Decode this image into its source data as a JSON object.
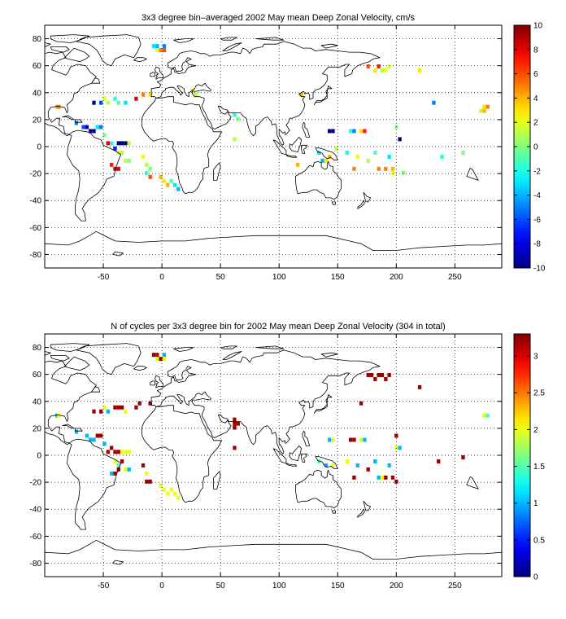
{
  "chart_data": [
    {
      "type": "heatmap",
      "title": "3x3 degree bin–averaged 2002 May mean Deep Zonal Velocity, cm/s",
      "xlabel": "",
      "ylabel": "",
      "xlim": [
        -100,
        290
      ],
      "ylim": [
        -90,
        90
      ],
      "x_ticks": [
        "-50",
        "0",
        "50",
        "100",
        "150",
        "200",
        "250"
      ],
      "y_ticks": [
        "80",
        "60",
        "40",
        "20",
        "0",
        "-20",
        "-40",
        "-60",
        "-80"
      ],
      "grid": true,
      "colorbar": {
        "range": [
          -10,
          10
        ],
        "ticks": [
          "10",
          "8",
          "6",
          "4",
          "2",
          "0",
          "-2",
          "-4",
          "-6",
          "-8",
          "-10"
        ],
        "colormap": "jet"
      },
      "bin_size_deg": 3,
      "cells": [
        [
          -89.5,
          29.5,
          4
        ],
        [
          -88,
          29.5,
          5
        ],
        [
          -58,
          32.5,
          -10
        ],
        [
          -52,
          32.5,
          -6
        ],
        [
          -49,
          35.5,
          2
        ],
        [
          -46,
          32.5,
          1
        ],
        [
          -40,
          35.5,
          -2
        ],
        [
          -37,
          32.5,
          -1
        ],
        [
          -31,
          32.5,
          -3
        ],
        [
          -22,
          35.5,
          8
        ],
        [
          -16,
          38.5,
          5
        ],
        [
          -10,
          38.5,
          3
        ],
        [
          -7,
          74.5,
          -3
        ],
        [
          -4,
          74.5,
          -4
        ],
        [
          -4,
          71.5,
          2
        ],
        [
          -1,
          71.5,
          5
        ],
        [
          2,
          74.5,
          -5
        ],
        [
          2,
          71.5,
          6
        ],
        [
          26,
          41.5,
          3
        ],
        [
          29,
          38.5,
          1
        ],
        [
          62,
          23.5,
          -2
        ],
        [
          65,
          20.5,
          0
        ],
        [
          62,
          5.5,
          1
        ],
        [
          119,
          38.5,
          4
        ],
        [
          143,
          11.5,
          -10
        ],
        [
          146,
          11.5,
          -10
        ],
        [
          161,
          11.5,
          -2
        ],
        [
          164,
          11.5,
          -5
        ],
        [
          170,
          11.5,
          3
        ],
        [
          173,
          11.5,
          7
        ],
        [
          164,
          -16.5,
          5
        ],
        [
          185,
          -16.5,
          5
        ],
        [
          191,
          -16.5,
          5
        ],
        [
          197,
          -16.5,
          4
        ],
        [
          182,
          56.5,
          3
        ],
        [
          185,
          59.5,
          7
        ],
        [
          188,
          56.5,
          1
        ],
        [
          191,
          56.5,
          2
        ],
        [
          194,
          59.5,
          2
        ],
        [
          176,
          59.5,
          6
        ],
        [
          220,
          56.5,
          3
        ],
        [
          232,
          32.5,
          -5
        ],
        [
          239,
          -7.5,
          -2
        ],
        [
          257,
          -4.5,
          0
        ],
        [
          -73,
          17.5,
          -5
        ],
        [
          -67,
          14.5,
          -6
        ],
        [
          -64,
          14.5,
          -9
        ],
        [
          -61,
          11.5,
          -10
        ],
        [
          -58,
          11.5,
          -10
        ],
        [
          -55,
          14.5,
          -3
        ],
        [
          -52,
          14.5,
          -5
        ],
        [
          -49,
          8.5,
          0
        ],
        [
          -46,
          2.5,
          8
        ],
        [
          -43,
          2.5,
          -2
        ],
        [
          -40,
          -1.5,
          -7
        ],
        [
          -37,
          2.5,
          -10
        ],
        [
          -34,
          2.5,
          -10
        ],
        [
          -31,
          2.5,
          -10
        ],
        [
          -28,
          2.5,
          1
        ],
        [
          -37,
          -4.5,
          2
        ],
        [
          -34,
          -4.5,
          1
        ],
        [
          -43,
          -13.5,
          7
        ],
        [
          -40,
          -16.5,
          8
        ],
        [
          -37,
          -16.5,
          8
        ],
        [
          -31,
          -10.5,
          1
        ],
        [
          -28,
          -10.5,
          0
        ],
        [
          -16,
          -7.5,
          2
        ],
        [
          -13,
          -13.5,
          1
        ],
        [
          -10,
          -16.5,
          0
        ],
        [
          -13,
          -19.5,
          -1
        ],
        [
          -10,
          -22.5,
          6
        ],
        [
          -1,
          -22.5,
          4
        ],
        [
          2,
          -25.5,
          3
        ],
        [
          5,
          -28.5,
          4
        ],
        [
          8,
          -25.5,
          -1
        ],
        [
          11,
          -28.5,
          -3
        ],
        [
          14,
          -31.5,
          -4
        ],
        [
          116,
          -13.5,
          4
        ],
        [
          134,
          -4.5,
          -3
        ],
        [
          137,
          -10.5,
          -4
        ],
        [
          140,
          -10.5,
          3
        ],
        [
          143,
          -7.5,
          4
        ],
        [
          149,
          -1.5,
          1
        ],
        [
          158,
          -4.5,
          -2
        ],
        [
          167,
          -7.5,
          2
        ],
        [
          176,
          -10.5,
          1
        ],
        [
          182,
          -4.5,
          -1
        ],
        [
          194,
          -7.5,
          -3
        ],
        [
          203,
          5.5,
          -10
        ],
        [
          200,
          14.5,
          0
        ],
        [
          197,
          -19.5,
          2
        ],
        [
          206,
          -19.5,
          0
        ],
        [
          275,
          29.5,
          3
        ],
        [
          278,
          29.5,
          5
        ],
        [
          272,
          26.5,
          1
        ],
        [
          275,
          26.5,
          4
        ]
      ]
    },
    {
      "type": "heatmap",
      "title": "N of cycles per 3x3 degree bin for 2002 May mean Deep Zonal Velocity (304 in total)",
      "xlabel": "",
      "ylabel": "",
      "xlim": [
        -100,
        290
      ],
      "ylim": [
        -90,
        90
      ],
      "x_ticks": [
        "-50",
        "0",
        "50",
        "100",
        "150",
        "200",
        "250"
      ],
      "y_ticks": [
        "80",
        "60",
        "40",
        "20",
        "0",
        "-20",
        "-40",
        "-60",
        "-80"
      ],
      "grid": true,
      "colorbar": {
        "range": [
          0,
          3.3
        ],
        "ticks": [
          "3",
          "2.5",
          "2",
          "1.5",
          "1",
          "0.5",
          "0"
        ],
        "colormap": "jet"
      },
      "bin_size_deg": 3,
      "cells": [
        [
          -89.5,
          29.5,
          1
        ],
        [
          -88,
          29.5,
          2
        ],
        [
          -58,
          32.5,
          3.2
        ],
        [
          -52,
          32.5,
          3.2
        ],
        [
          -49,
          35.5,
          2
        ],
        [
          -46,
          32.5,
          1
        ],
        [
          -40,
          35.5,
          3.2
        ],
        [
          -37,
          35.5,
          3.2
        ],
        [
          -34,
          35.5,
          3.2
        ],
        [
          -31,
          32.5,
          2
        ],
        [
          -22,
          35.5,
          3.2
        ],
        [
          -19,
          38.5,
          3.2
        ],
        [
          -10,
          38.5,
          3.2
        ],
        [
          -7,
          74.5,
          3.2
        ],
        [
          -4,
          74.5,
          3.2
        ],
        [
          -1,
          71.5,
          3.2
        ],
        [
          2,
          74.5,
          1
        ],
        [
          2,
          71.5,
          2
        ],
        [
          -4,
          71.5,
          2
        ],
        [
          62,
          26.5,
          3.2
        ],
        [
          62,
          23.5,
          3.2
        ],
        [
          62,
          20.5,
          3.2
        ],
        [
          65,
          23.5,
          3.2
        ],
        [
          62,
          5.5,
          3.2
        ],
        [
          170,
          38.5,
          3.2
        ],
        [
          143,
          11.5,
          1
        ],
        [
          146,
          11.5,
          2
        ],
        [
          161,
          11.5,
          3.2
        ],
        [
          164,
          11.5,
          3.2
        ],
        [
          170,
          11.5,
          2
        ],
        [
          173,
          11.5,
          1
        ],
        [
          164,
          -16.5,
          3.2
        ],
        [
          185,
          -16.5,
          1
        ],
        [
          188,
          -16.5,
          2
        ],
        [
          191,
          -16.5,
          3.2
        ],
        [
          197,
          -16.5,
          3.2
        ],
        [
          176,
          59.5,
          3.2
        ],
        [
          182,
          56.5,
          3.2
        ],
        [
          185,
          59.5,
          3.2
        ],
        [
          188,
          59.5,
          3.2
        ],
        [
          191,
          56.5,
          3.2
        ],
        [
          194,
          59.5,
          3.2
        ],
        [
          179,
          59.5,
          3.2
        ],
        [
          220,
          50.5,
          3.2
        ],
        [
          236,
          -4.5,
          3.2
        ],
        [
          257,
          -1.5,
          3.2
        ],
        [
          -73,
          17.5,
          1
        ],
        [
          -64,
          14.5,
          1
        ],
        [
          -61,
          11.5,
          1
        ],
        [
          -58,
          11.5,
          1
        ],
        [
          -55,
          14.5,
          3.2
        ],
        [
          -52,
          14.5,
          3.2
        ],
        [
          -49,
          8.5,
          1
        ],
        [
          -46,
          2.5,
          3.2
        ],
        [
          -43,
          5.5,
          3.2
        ],
        [
          -40,
          2.5,
          3.2
        ],
        [
          -37,
          2.5,
          3.2
        ],
        [
          -34,
          2.5,
          2
        ],
        [
          -31,
          2.5,
          2
        ],
        [
          -28,
          2.5,
          2
        ],
        [
          -40,
          -4.5,
          2
        ],
        [
          -37,
          -7.5,
          1.5
        ],
        [
          -34,
          -4.5,
          3.2
        ],
        [
          -43,
          -13.5,
          1
        ],
        [
          -40,
          -13.5,
          3.2
        ],
        [
          -37,
          -10.5,
          3.2
        ],
        [
          -31,
          -10.5,
          2
        ],
        [
          -28,
          -10.5,
          1
        ],
        [
          -16,
          -7.5,
          3.2
        ],
        [
          -13,
          -13.5,
          2
        ],
        [
          -10,
          -19.5,
          3.2
        ],
        [
          -13,
          -19.5,
          3.2
        ],
        [
          -1,
          -22.5,
          2
        ],
        [
          2,
          -25.5,
          2
        ],
        [
          5,
          -28.5,
          2
        ],
        [
          8,
          -25.5,
          2
        ],
        [
          11,
          -28.5,
          2
        ],
        [
          14,
          -31.5,
          2
        ],
        [
          134,
          -4.5,
          1.5
        ],
        [
          140,
          -7.5,
          1
        ],
        [
          146,
          -7.5,
          2
        ],
        [
          158,
          -4.5,
          2
        ],
        [
          167,
          -7.5,
          1
        ],
        [
          176,
          -10.5,
          3.2
        ],
        [
          182,
          -4.5,
          1
        ],
        [
          194,
          -7.5,
          1
        ],
        [
          200,
          5.5,
          2
        ],
        [
          203,
          5.5,
          1
        ],
        [
          200,
          14.5,
          3.2
        ],
        [
          200,
          -19.5,
          3.2
        ],
        [
          275,
          29.5,
          2
        ],
        [
          278,
          29.5,
          1.5
        ]
      ]
    }
  ]
}
